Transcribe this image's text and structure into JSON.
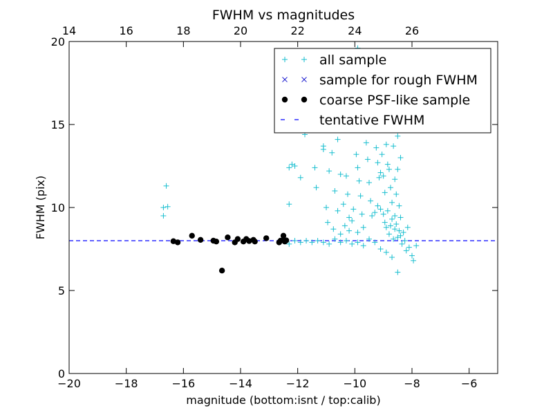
{
  "chart_data": {
    "type": "scatter",
    "title": "FWHM vs magnitudes",
    "xlabel": "magnitude (bottom:isnt / top:calib)",
    "ylabel": "FWHM (pix)",
    "xlim": [
      -20,
      -5
    ],
    "ylim": [
      0,
      20
    ],
    "x_ticks": [
      -20,
      -18,
      -16,
      -14,
      -12,
      -10,
      -8,
      -6
    ],
    "x_tick_labels": [
      "−20",
      "−18",
      "−16",
      "−14",
      "−12",
      "−10",
      "−8",
      "−6"
    ],
    "y_ticks": [
      0,
      5,
      10,
      15,
      20
    ],
    "y_tick_labels": [
      "0",
      "5",
      "10",
      "15",
      "20"
    ],
    "top_axis": {
      "label_offset_from_bottom": 34,
      "ticks": [
        14,
        16,
        18,
        20,
        22,
        24,
        26
      ],
      "tick_labels": [
        "14",
        "16",
        "18",
        "20",
        "22",
        "24",
        "26"
      ]
    },
    "grid": false,
    "legend_position": "top-right",
    "colors": {
      "all_sample": "#17becf",
      "rough_sample": "#1f1fd0",
      "psf_sample": "#000000",
      "tentative_line": "#0000ff"
    },
    "series": [
      {
        "name": "all sample",
        "marker": "plus",
        "points": [
          [
            -16.7,
            9.5
          ],
          [
            -16.7,
            10.0
          ],
          [
            -16.55,
            10.05
          ],
          [
            -16.6,
            11.3
          ],
          [
            -12.3,
            10.2
          ],
          [
            -12.3,
            12.4
          ],
          [
            -12.2,
            12.6
          ],
          [
            -12.1,
            12.5
          ],
          [
            -11.9,
            11.8
          ],
          [
            -11.75,
            14.4
          ],
          [
            -11.4,
            12.4
          ],
          [
            -11.35,
            11.2
          ],
          [
            -11.1,
            13.5
          ],
          [
            -11.1,
            13.7
          ],
          [
            -11.0,
            10.0
          ],
          [
            -10.9,
            12.2
          ],
          [
            -10.7,
            11.0
          ],
          [
            -10.6,
            9.8
          ],
          [
            -10.5,
            12.0
          ],
          [
            -10.4,
            10.2
          ],
          [
            -10.3,
            11.9
          ],
          [
            -10.25,
            10.8
          ],
          [
            -10.0,
            14.8
          ],
          [
            -9.95,
            13.2
          ],
          [
            -9.9,
            12.4
          ],
          [
            -9.85,
            11.6
          ],
          [
            -9.8,
            10.7
          ],
          [
            -9.75,
            9.6
          ],
          [
            -9.7,
            8.8
          ],
          [
            -9.9,
            8.5
          ],
          [
            -10.1,
            9.2
          ],
          [
            -10.05,
            9.9
          ],
          [
            -10.2,
            8.6
          ],
          [
            -10.35,
            8.9
          ],
          [
            -9.6,
            13.9
          ],
          [
            -9.55,
            12.9
          ],
          [
            -9.5,
            11.5
          ],
          [
            -9.45,
            10.4
          ],
          [
            -9.4,
            9.5
          ],
          [
            -9.35,
            15.6
          ],
          [
            -9.3,
            14.7
          ],
          [
            -9.25,
            13.6
          ],
          [
            -9.2,
            12.7
          ],
          [
            -9.15,
            11.8
          ],
          [
            -9.1,
            12.1
          ],
          [
            -9.05,
            13.2
          ],
          [
            -9.0,
            11.9
          ],
          [
            -8.95,
            10.9
          ],
          [
            -8.9,
            13.8
          ],
          [
            -8.85,
            12.6
          ],
          [
            -8.8,
            12.3
          ],
          [
            -8.75,
            11.2
          ],
          [
            -8.7,
            10.3
          ],
          [
            -8.65,
            13.7
          ],
          [
            -8.6,
            11.7
          ],
          [
            -8.55,
            10.8
          ],
          [
            -8.5,
            12.3
          ],
          [
            -8.45,
            10.1
          ],
          [
            -8.4,
            9.4
          ],
          [
            -9.2,
            10.1
          ],
          [
            -9.1,
            9.9
          ],
          [
            -9.0,
            9.6
          ],
          [
            -8.95,
            9.1
          ],
          [
            -8.9,
            8.8
          ],
          [
            -8.85,
            9.8
          ],
          [
            -8.8,
            8.4
          ],
          [
            -8.75,
            8.9
          ],
          [
            -8.7,
            9.3
          ],
          [
            -8.65,
            8.1
          ],
          [
            -8.6,
            8.7
          ],
          [
            -8.55,
            9.0
          ],
          [
            -8.5,
            8.2
          ],
          [
            -8.45,
            8.6
          ],
          [
            -8.4,
            8.3
          ],
          [
            -8.35,
            7.8
          ],
          [
            -8.3,
            8.5
          ],
          [
            -8.25,
            8.0
          ],
          [
            -8.2,
            7.4
          ],
          [
            -8.15,
            8.8
          ],
          [
            -8.1,
            7.6
          ],
          [
            -8.0,
            7.1
          ],
          [
            -7.95,
            6.8
          ],
          [
            -7.85,
            7.7
          ],
          [
            -8.5,
            6.1
          ],
          [
            -8.7,
            7.0
          ],
          [
            -8.9,
            7.3
          ],
          [
            -9.1,
            7.5
          ],
          [
            -9.3,
            7.9
          ],
          [
            -9.5,
            8.1
          ],
          [
            -9.7,
            7.7
          ],
          [
            -9.9,
            7.9
          ],
          [
            -10.1,
            7.8
          ],
          [
            -10.3,
            8.0
          ],
          [
            -10.5,
            7.9
          ],
          [
            -10.7,
            8.1
          ],
          [
            -10.9,
            7.8
          ],
          [
            -11.1,
            7.9
          ],
          [
            -11.3,
            8.0
          ],
          [
            -11.5,
            7.9
          ],
          [
            -11.7,
            8.0
          ],
          [
            -11.9,
            7.9
          ],
          [
            -12.1,
            8.0
          ],
          [
            -12.3,
            7.8
          ],
          [
            -9.9,
            19.6
          ],
          [
            -9.8,
            19.3
          ],
          [
            -9.4,
            15.2
          ],
          [
            -9.3,
            16.2
          ],
          [
            -9.6,
            16.9
          ],
          [
            -10.0,
            17.8
          ],
          [
            -8.4,
            13.0
          ],
          [
            -8.5,
            14.3
          ],
          [
            -10.4,
            16.0
          ],
          [
            -10.6,
            14.1
          ],
          [
            -10.8,
            13.3
          ],
          [
            -10.2,
            9.4
          ],
          [
            -10.5,
            8.4
          ],
          [
            -10.75,
            8.7
          ],
          [
            -10.95,
            9.1
          ],
          [
            -9.3,
            9.7
          ],
          [
            -8.6,
            9.5
          ]
        ]
      },
      {
        "name": "sample for rough FWHM",
        "marker": "x",
        "points": []
      },
      {
        "name": "coarse PSF-like sample",
        "marker": "dot",
        "points": [
          [
            -16.35,
            7.97
          ],
          [
            -16.2,
            7.9
          ],
          [
            -15.7,
            8.3
          ],
          [
            -15.4,
            8.05
          ],
          [
            -14.95,
            8.0
          ],
          [
            -14.85,
            7.95
          ],
          [
            -14.65,
            6.2
          ],
          [
            -14.45,
            8.2
          ],
          [
            -14.2,
            7.9
          ],
          [
            -14.1,
            8.1
          ],
          [
            -13.9,
            7.95
          ],
          [
            -13.8,
            8.1
          ],
          [
            -13.7,
            7.98
          ],
          [
            -13.55,
            8.05
          ],
          [
            -13.5,
            7.95
          ],
          [
            -13.1,
            8.15
          ],
          [
            -12.65,
            7.9
          ],
          [
            -12.6,
            8.0
          ],
          [
            -12.5,
            8.05
          ],
          [
            -12.45,
            7.95
          ],
          [
            -12.5,
            8.3
          ],
          [
            -12.4,
            8.02
          ]
        ]
      }
    ],
    "reference_line": {
      "name": "tentative FWHM",
      "y": 8.0,
      "style": "dashed"
    },
    "legend": [
      {
        "label": "all sample",
        "marker": "plus"
      },
      {
        "label": "sample for rough FWHM",
        "marker": "x"
      },
      {
        "label": "coarse PSF-like sample",
        "marker": "dot"
      },
      {
        "label": "tentative FWHM",
        "marker": "dash"
      }
    ]
  }
}
